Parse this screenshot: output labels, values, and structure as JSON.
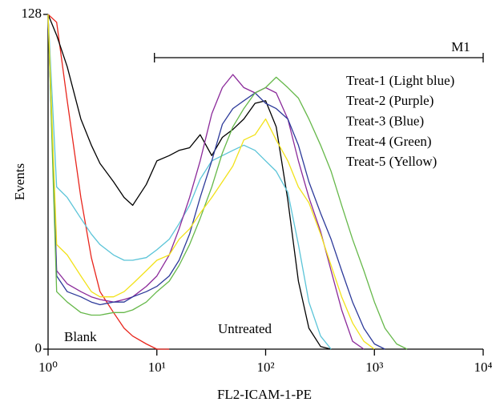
{
  "chart_data": {
    "type": "line",
    "xlabel": "FL2-ICAM-1-PE",
    "ylabel": "Events",
    "log_x": true,
    "xlim": [
      1,
      10000
    ],
    "ylim": [
      0,
      128
    ],
    "xticks": [
      {
        "value": 1,
        "label": "10⁰"
      },
      {
        "value": 10,
        "label": "10¹"
      },
      {
        "value": 100,
        "label": "10²"
      },
      {
        "value": 1000,
        "label": "10³"
      },
      {
        "value": 10000,
        "label": "10⁴"
      }
    ],
    "yticks": [
      0,
      128
    ],
    "marker": {
      "label": "M1",
      "range": [
        9.5,
        10000
      ]
    },
    "x": [
      1,
      1.2,
      1.5,
      2,
      2.5,
      3,
      4,
      5,
      6,
      8,
      10,
      13,
      16,
      20,
      25,
      32,
      40,
      50,
      63,
      80,
      100,
      125,
      160,
      200,
      250,
      320,
      400,
      500,
      630,
      800,
      1000,
      1250,
      1600,
      2000
    ],
    "series": [
      {
        "name": "Blank",
        "color": "#e8251c",
        "values": [
          128,
          125,
          95,
          58,
          35,
          22,
          14,
          8,
          5,
          2,
          0,
          0,
          null,
          null,
          null,
          null,
          null,
          null,
          null,
          null,
          null,
          null,
          null,
          null,
          null,
          null,
          null,
          null,
          null,
          null,
          null,
          null,
          null,
          null
        ]
      },
      {
        "name": "Untreated",
        "color": "#000000",
        "values": [
          128,
          120,
          108,
          88,
          78,
          71,
          64,
          58,
          55,
          63,
          72,
          74,
          76,
          77,
          82,
          74,
          81,
          84,
          88,
          94,
          95,
          85,
          57,
          26,
          8,
          1,
          0,
          null,
          null,
          null,
          null,
          null,
          null,
          null
        ]
      },
      {
        "name": "Treat-1 (Light blue)",
        "color": "#5bc4d8",
        "values": [
          128,
          62,
          58,
          50,
          44,
          40,
          36,
          34,
          34,
          35,
          38,
          42,
          48,
          55,
          65,
          72,
          74,
          76,
          78,
          76,
          72,
          68,
          60,
          40,
          18,
          5,
          0,
          null,
          null,
          null,
          null,
          null,
          null,
          null
        ]
      },
      {
        "name": "Treat-2 (Purple)",
        "color": "#8b2a9a",
        "values": [
          128,
          30,
          25,
          22,
          20,
          19,
          18,
          19,
          20,
          24,
          28,
          36,
          46,
          58,
          72,
          90,
          100,
          105,
          100,
          98,
          100,
          98,
          88,
          72,
          58,
          45,
          30,
          15,
          3,
          0,
          null,
          null,
          null,
          null
        ]
      },
      {
        "name": "Treat-3 (Blue)",
        "color": "#2d3a9a",
        "values": [
          128,
          28,
          22,
          20,
          18,
          17,
          18,
          18,
          20,
          22,
          24,
          28,
          34,
          44,
          58,
          72,
          86,
          92,
          95,
          98,
          94,
          92,
          88,
          78,
          64,
          52,
          42,
          30,
          18,
          8,
          2,
          0,
          null,
          null
        ]
      },
      {
        "name": "Treat-4 (Green)",
        "color": "#66b84a",
        "values": [
          128,
          22,
          18,
          14,
          13,
          13,
          14,
          14,
          15,
          18,
          22,
          26,
          32,
          40,
          50,
          62,
          75,
          85,
          92,
          98,
          100,
          104,
          100,
          96,
          88,
          78,
          68,
          55,
          42,
          30,
          18,
          8,
          2,
          0
        ]
      },
      {
        "name": "Treat-5 (Yellow)",
        "color": "#f2e21a",
        "values": [
          128,
          40,
          36,
          28,
          22,
          20,
          20,
          22,
          25,
          30,
          34,
          36,
          42,
          46,
          52,
          58,
          64,
          70,
          80,
          82,
          88,
          80,
          72,
          62,
          56,
          44,
          32,
          20,
          10,
          3,
          0,
          null,
          null,
          null
        ]
      }
    ]
  }
}
